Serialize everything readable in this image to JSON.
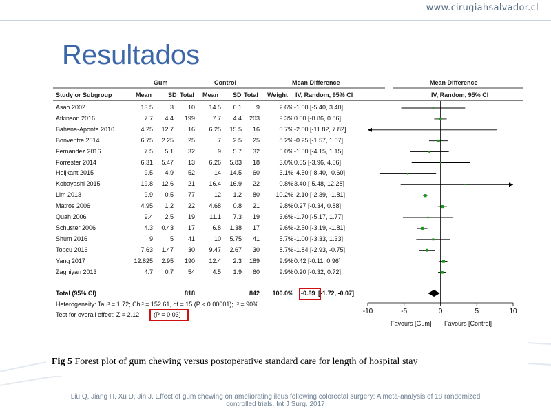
{
  "site": "www.cirugiahsalvador.cl",
  "slide_title": "Resultados",
  "chart_data": {
    "type": "forest",
    "title": "",
    "columns": {
      "study": "Study or Subgroup",
      "gum_group": "Gum",
      "control_group": "Control",
      "mean": "Mean",
      "sd": "SD",
      "total": "Total",
      "weight": "Weight",
      "md_header_1": "Mean Difference",
      "md_header_2": "IV, Random, 95% CI",
      "plot_header_1": "Mean Difference",
      "plot_header_2": "IV, Random, 95% CI"
    },
    "studies": [
      {
        "name": "Asao 2002",
        "g_mean": "13.5",
        "g_sd": "3",
        "g_n": "10",
        "c_mean": "14.5",
        "c_sd": "6.1",
        "c_n": "9",
        "weight": "2.6%",
        "ci": "-1.00 [-5.40, 3.40]",
        "md": -1.0,
        "lo": -5.4,
        "hi": 3.4
      },
      {
        "name": "Atkinson 2016",
        "g_mean": "7.7",
        "g_sd": "4.4",
        "g_n": "199",
        "c_mean": "7.7",
        "c_sd": "4.4",
        "c_n": "203",
        "weight": "9.3%",
        "ci": "0.00 [-0.86, 0.86]",
        "md": 0.0,
        "lo": -0.86,
        "hi": 0.86
      },
      {
        "name": "Bahena-Aponte 2010",
        "g_mean": "4.25",
        "g_sd": "12.7",
        "g_n": "16",
        "c_mean": "6.25",
        "c_sd": "15.5",
        "c_n": "16",
        "weight": "0.7%",
        "ci": "-2.00 [-11.82, 7.82]",
        "md": -2.0,
        "lo": -11.82,
        "hi": 7.82
      },
      {
        "name": "Bonventre 2014",
        "g_mean": "6.75",
        "g_sd": "2.25",
        "g_n": "25",
        "c_mean": "7",
        "c_sd": "2.5",
        "c_n": "25",
        "weight": "8.2%",
        "ci": "-0.25 [-1.57, 1.07]",
        "md": -0.25,
        "lo": -1.57,
        "hi": 1.07
      },
      {
        "name": "Fernandez 2016",
        "g_mean": "7.5",
        "g_sd": "5.1",
        "g_n": "32",
        "c_mean": "9",
        "c_sd": "5.7",
        "c_n": "32",
        "weight": "5.0%",
        "ci": "-1.50 [-4.15, 1.15]",
        "md": -1.5,
        "lo": -4.15,
        "hi": 1.15
      },
      {
        "name": "Forrester 2014",
        "g_mean": "6.31",
        "g_sd": "5.47",
        "g_n": "13",
        "c_mean": "6.26",
        "c_sd": "5.83",
        "c_n": "18",
        "weight": "3.0%",
        "ci": "0.05 [-3.96, 4.06]",
        "md": 0.05,
        "lo": -3.96,
        "hi": 4.06
      },
      {
        "name": "Heijkant 2015",
        "g_mean": "9.5",
        "g_sd": "4.9",
        "g_n": "52",
        "c_mean": "14",
        "c_sd": "14.5",
        "c_n": "60",
        "weight": "3.1%",
        "ci": "-4.50 [-8.40, -0.60]",
        "md": -4.5,
        "lo": -8.4,
        "hi": -0.6
      },
      {
        "name": "Kobayashi 2015",
        "g_mean": "19.8",
        "g_sd": "12.6",
        "g_n": "21",
        "c_mean": "16.4",
        "c_sd": "16.9",
        "c_n": "22",
        "weight": "0.8%",
        "ci": "3.40 [-5.48, 12.28]",
        "md": 3.4,
        "lo": -5.48,
        "hi": 12.28
      },
      {
        "name": "Lim 2013",
        "g_mean": "9.9",
        "g_sd": "0.5",
        "g_n": "77",
        "c_mean": "12",
        "c_sd": "1.2",
        "c_n": "80",
        "weight": "10.2%",
        "ci": "-2.10 [-2.39, -1.81]",
        "md": -2.1,
        "lo": -2.39,
        "hi": -1.81
      },
      {
        "name": "Matros 2006",
        "g_mean": "4.95",
        "g_sd": "1.2",
        "g_n": "22",
        "c_mean": "4.68",
        "c_sd": "0.8",
        "c_n": "21",
        "weight": "9.8%",
        "ci": "0.27 [-0.34, 0.88]",
        "md": 0.27,
        "lo": -0.34,
        "hi": 0.88
      },
      {
        "name": "Quah 2006",
        "g_mean": "9.4",
        "g_sd": "2.5",
        "g_n": "19",
        "c_mean": "11.1",
        "c_sd": "7.3",
        "c_n": "19",
        "weight": "3.6%",
        "ci": "-1.70 [-5.17, 1.77]",
        "md": -1.7,
        "lo": -5.17,
        "hi": 1.77
      },
      {
        "name": "Schuster 2006",
        "g_mean": "4.3",
        "g_sd": "0.43",
        "g_n": "17",
        "c_mean": "6.8",
        "c_sd": "1.38",
        "c_n": "17",
        "weight": "9.6%",
        "ci": "-2.50 [-3.19, -1.81]",
        "md": -2.5,
        "lo": -3.19,
        "hi": -1.81
      },
      {
        "name": "Shum 2016",
        "g_mean": "9",
        "g_sd": "5",
        "g_n": "41",
        "c_mean": "10",
        "c_sd": "5.75",
        "c_n": "41",
        "weight": "5.7%",
        "ci": "-1.00 [-3.33, 1.33]",
        "md": -1.0,
        "lo": -3.33,
        "hi": 1.33
      },
      {
        "name": "Topcu 2016",
        "g_mean": "7.63",
        "g_sd": "1.47",
        "g_n": "30",
        "c_mean": "9.47",
        "c_sd": "2.67",
        "c_n": "30",
        "weight": "8.7%",
        "ci": "-1.84 [-2.93, -0.75]",
        "md": -1.84,
        "lo": -2.93,
        "hi": -0.75
      },
      {
        "name": "Yang 2017",
        "g_mean": "12.825",
        "g_sd": "2.95",
        "g_n": "190",
        "c_mean": "12.4",
        "c_sd": "2.3",
        "c_n": "189",
        "weight": "9.9%",
        "ci": "0.42 [-0.11, 0.96]",
        "md": 0.42,
        "lo": -0.11,
        "hi": 0.96
      },
      {
        "name": "Zaghiyan 2013",
        "g_mean": "4.7",
        "g_sd": "0.7",
        "g_n": "54",
        "c_mean": "4.5",
        "c_sd": "1.9",
        "c_n": "60",
        "weight": "9.9%",
        "ci": "0.20 [-0.32, 0.72]",
        "md": 0.2,
        "lo": -0.32,
        "hi": 0.72
      }
    ],
    "total": {
      "label": "Total (95% CI)",
      "g_n": "818",
      "c_n": "842",
      "weight": "100.0%",
      "ci_md": "-0.89",
      "ci_rest": "[-1.72, -0.07]",
      "md": -0.89,
      "lo": -1.72,
      "hi": -0.07
    },
    "heterogeneity": "Heterogeneity: Tau² = 1.72; Chi² = 152.61, df = 15 (P < 0.00001); I² = 90%",
    "overall_prefix": "Test for overall effect: Z = 2.12",
    "overall_p": "(P = 0.03)",
    "xlim": [
      -10,
      10
    ],
    "xticks": [
      "-10",
      "-5",
      "0",
      "5",
      "10"
    ],
    "xtick_values": [
      -10,
      -5,
      0,
      5,
      10
    ],
    "favours_left": "Favours [Gum]",
    "favours_right": "Favours [Control]",
    "colors": {
      "point": "#1a9a1a",
      "line": "#000000",
      "highlight": "#d01010"
    }
  },
  "caption_label": "Fig 5",
  "caption_text": " Forest plot of gum chewing versus postoperative standard care for length of hospital stay",
  "citation": "Liu Q, Jiang H, Xu D, Jin J. Effect of gum chewing on ameliorating ileus following colorectal surgery: A meta-analysis of 18 randomized controlled trials. Int J Surg. 2017"
}
